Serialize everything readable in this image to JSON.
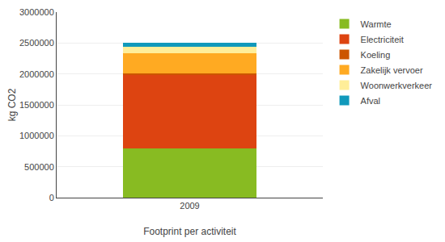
{
  "chart_data": {
    "type": "bar",
    "stacked": true,
    "title": "Footprint per activiteit",
    "ylabel": "kg CO2",
    "categories": [
      "2009"
    ],
    "series": [
      {
        "name": "Warmte",
        "color": "#88bb22",
        "values": [
          800000
        ]
      },
      {
        "name": "Electriciteit",
        "color": "#dd4411",
        "values": [
          1190000
        ]
      },
      {
        "name": "Koeling",
        "color": "#cc5500",
        "values": [
          15000
        ]
      },
      {
        "name": "Zakelijk vervoer",
        "color": "#ffaa22",
        "values": [
          330000
        ]
      },
      {
        "name": "Woonwerkverkeer",
        "color": "#ffee99",
        "values": [
          105000
        ]
      },
      {
        "name": "Afval",
        "color": "#1199bb",
        "values": [
          60000
        ]
      }
    ],
    "ylim": [
      0,
      3000000
    ],
    "yticks": [
      0,
      500000,
      1000000,
      1500000,
      2000000,
      2500000,
      3000000
    ],
    "grid": true,
    "legend": "right"
  }
}
